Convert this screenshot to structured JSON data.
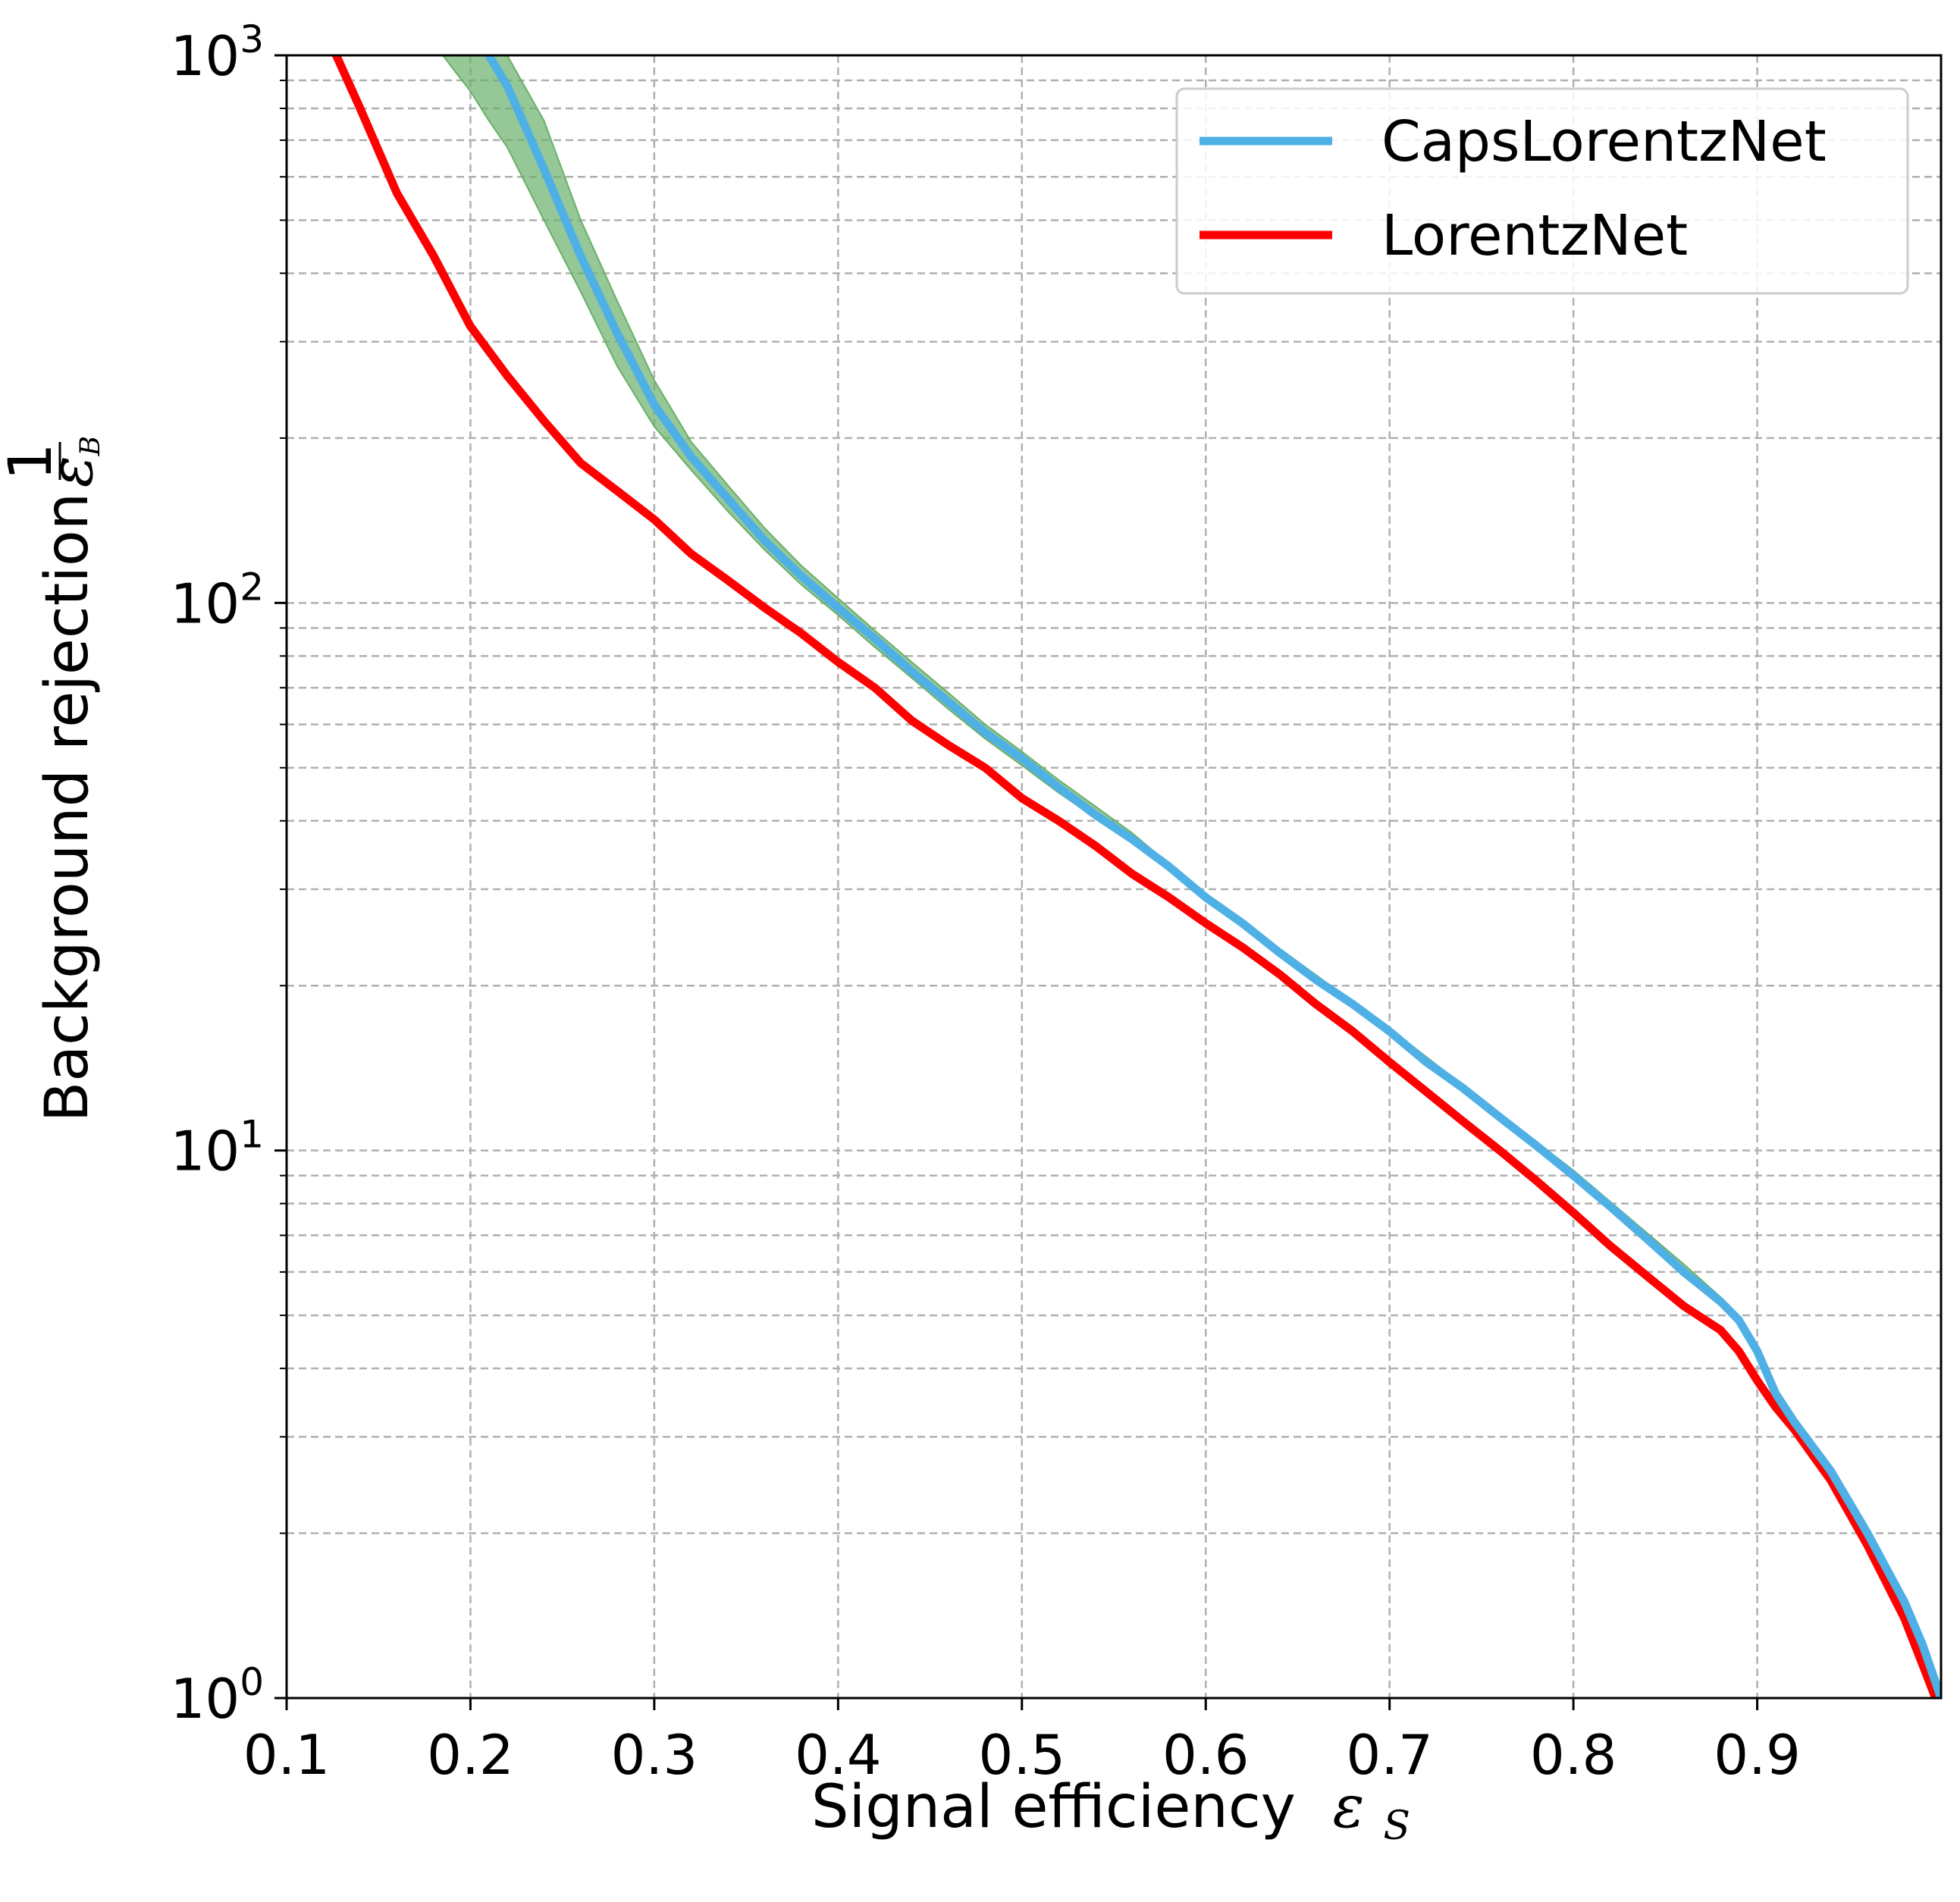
{
  "chart_data": {
    "type": "line",
    "xlabel": "Signal efficiency",
    "xlabel_symbol": "ε",
    "xlabel_subscript": "S",
    "ylabel": "Background rejection",
    "ylabel_fraction_numerator": "1",
    "ylabel_fraction_denominator": "ε",
    "ylabel_fraction_subscript": "B",
    "xlim": [
      0.1,
      1.0
    ],
    "ylim": [
      1,
      1000
    ],
    "yscale": "log",
    "grid": true,
    "legend_position": "top-right",
    "x_ticks": [
      "0.1",
      "0.2",
      "0.3",
      "0.4",
      "0.5",
      "0.6",
      "0.7",
      "0.8",
      "0.9"
    ],
    "y_ticks": [
      {
        "value": 1,
        "base": "10",
        "exp": "0"
      },
      {
        "value": 10,
        "base": "10",
        "exp": "1"
      },
      {
        "value": 100,
        "base": "10",
        "exp": "2"
      },
      {
        "value": 1000,
        "base": "10",
        "exp": "3"
      }
    ],
    "series": [
      {
        "name": "CapsLorentzNet",
        "color": "#4fb0e6",
        "x": [
          0.21,
          0.22,
          0.24,
          0.26,
          0.28,
          0.3,
          0.32,
          0.34,
          0.36,
          0.38,
          0.4,
          0.42,
          0.44,
          0.46,
          0.48,
          0.5,
          0.52,
          0.54,
          0.56,
          0.58,
          0.6,
          0.62,
          0.64,
          0.66,
          0.68,
          0.7,
          0.72,
          0.74,
          0.76,
          0.78,
          0.8,
          0.82,
          0.84,
          0.86,
          0.88,
          0.89,
          0.9,
          0.91,
          0.92,
          0.94,
          0.96,
          0.98,
          0.99,
          1.0
        ],
        "y": [
          1000,
          880,
          620,
          430,
          310,
          230,
          185,
          155,
          130,
          112,
          98,
          86,
          75,
          66,
          58,
          52,
          46,
          41,
          37,
          33,
          29,
          26,
          23,
          20.5,
          18.5,
          16.5,
          14.5,
          13,
          11.5,
          10.2,
          9.0,
          7.9,
          6.9,
          6.0,
          5.3,
          4.9,
          4.3,
          3.6,
          3.2,
          2.6,
          2.0,
          1.5,
          1.25,
          1.0
        ]
      },
      {
        "name": "LorentzNet",
        "color": "#ff0000",
        "x": [
          0.127,
          0.14,
          0.16,
          0.18,
          0.2,
          0.22,
          0.24,
          0.26,
          0.28,
          0.3,
          0.32,
          0.34,
          0.36,
          0.38,
          0.4,
          0.42,
          0.44,
          0.46,
          0.48,
          0.5,
          0.52,
          0.54,
          0.56,
          0.58,
          0.6,
          0.62,
          0.64,
          0.66,
          0.68,
          0.7,
          0.72,
          0.74,
          0.76,
          0.78,
          0.8,
          0.82,
          0.84,
          0.86,
          0.88,
          0.89,
          0.9,
          0.91,
          0.92,
          0.94,
          0.96,
          0.98,
          0.99,
          0.997
        ],
        "y": [
          1000,
          800,
          560,
          430,
          320,
          260,
          215,
          180,
          160,
          142,
          123,
          110,
          98,
          88,
          78,
          70,
          61,
          55,
          50,
          44,
          40,
          36,
          32,
          29,
          26,
          23.5,
          21,
          18.5,
          16.5,
          14.5,
          12.8,
          11.3,
          10.0,
          8.8,
          7.7,
          6.7,
          5.9,
          5.2,
          4.7,
          4.3,
          3.8,
          3.4,
          3.1,
          2.5,
          1.9,
          1.4,
          1.15,
          1.0
        ]
      }
    ],
    "band": {
      "color": "#6aaf6a",
      "x": [
        0.185,
        0.19,
        0.2,
        0.21,
        0.22,
        0.24,
        0.26,
        0.28,
        0.3,
        0.32,
        0.34,
        0.36,
        0.38,
        0.4,
        0.42,
        0.44,
        0.46,
        0.48,
        0.5,
        0.52,
        0.54,
        0.56,
        0.6,
        0.7,
        0.8,
        0.86,
        0.88
      ],
      "lower": [
        1000,
        950,
        860,
        760,
        680,
        500,
        370,
        270,
        210,
        175,
        147,
        125,
        108,
        95,
        83,
        73,
        64,
        56.5,
        50.5,
        45,
        40.5,
        36.5,
        28.8,
        16.4,
        8.9,
        5.9,
        5.2
      ],
      "upper": [
        1000,
        1000,
        1000,
        1000,
        1000,
        760,
        500,
        355,
        255,
        197,
        164,
        137,
        117,
        102,
        89,
        78,
        68.5,
        60,
        53.5,
        47.5,
        42.5,
        38,
        29.3,
        16.7,
        9.2,
        6.2,
        5.4
      ]
    }
  }
}
